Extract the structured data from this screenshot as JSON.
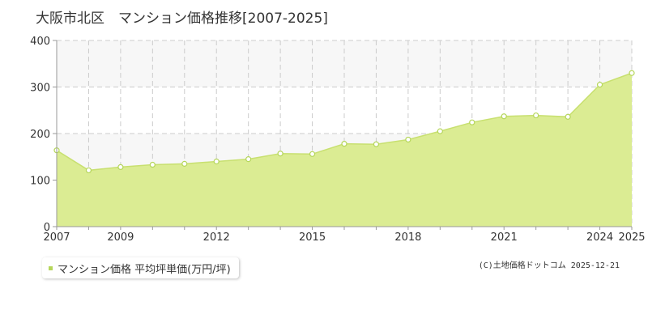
{
  "chart_data": {
    "type": "area",
    "title": "大阪市北区　マンション価格推移[2007-2025]",
    "x": [
      2007,
      2008,
      2009,
      2010,
      2011,
      2012,
      2013,
      2014,
      2015,
      2016,
      2017,
      2018,
      2019,
      2020,
      2021,
      2022,
      2023,
      2024,
      2025
    ],
    "x_tick_labels": [
      "2007",
      "2009",
      "2012",
      "2015",
      "2018",
      "2021",
      "2024",
      "2025"
    ],
    "x_tick_values": [
      2007,
      2009,
      2012,
      2015,
      2018,
      2021,
      2024,
      2025
    ],
    "series": [
      {
        "name": "マンション価格 平均坪単価(万円/坪)",
        "values": [
          164,
          121,
          128,
          133,
          135,
          140,
          145,
          157,
          156,
          178,
          177,
          187,
          205,
          224,
          237,
          239,
          236,
          305,
          330
        ]
      }
    ],
    "y_ticks": [
      0,
      100,
      200,
      300,
      400
    ],
    "ylim": [
      0,
      400
    ],
    "xlim": [
      2007,
      2025
    ],
    "grid": true,
    "legend_position": "bottom-left",
    "colors": {
      "area_fill": "#dbec93",
      "line": "#c8e070",
      "marker_stroke": "#b5d65a",
      "marker_fill": "#ffffff",
      "legend_swatch": "#b5d65a",
      "grid": "#cccccc",
      "band": "#f7f7f7"
    }
  },
  "source": "(C)土地価格ドットコム 2025-12-21"
}
